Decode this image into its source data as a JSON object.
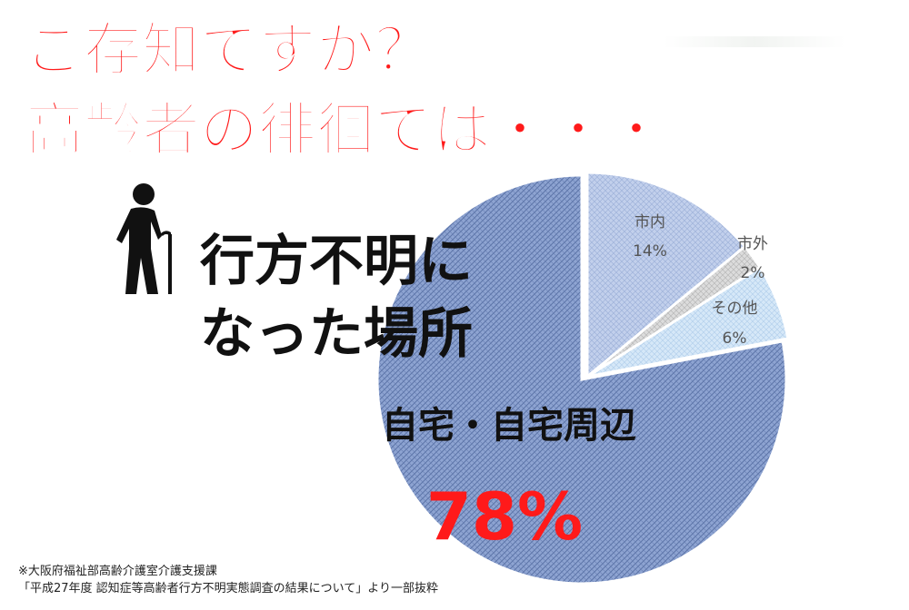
{
  "headline": {
    "line1": "ご存知ですか？",
    "line2": "高齢者の徘徊では・・・"
  },
  "subject": {
    "line1": "行方不明に",
    "line2": "なった場所"
  },
  "icon": "elderly-person-with-cane-icon",
  "chart_data": {
    "type": "pie",
    "slices": [
      {
        "name": "市内",
        "value": 14,
        "label": "14%",
        "color": "#b8c8e6"
      },
      {
        "name": "市外",
        "value": 2,
        "label": "2%",
        "color": "#d4d4d4"
      },
      {
        "name": "その他",
        "value": 6,
        "label": "6%",
        "color": "#cfe3f7"
      },
      {
        "name": "自宅・自宅周辺",
        "value": 78,
        "label": "78%",
        "color": "#8ea4d2"
      }
    ],
    "start": "12 o'clock",
    "direction": "clockwise",
    "highlight_color": "#ff1a1a"
  },
  "source": {
    "line1": "※大阪府福祉部高齢介護室介護支援課",
    "line2": "「平成27年度 認知症等高齢者行方不明実態調査の結果について」より一部抜粋"
  }
}
